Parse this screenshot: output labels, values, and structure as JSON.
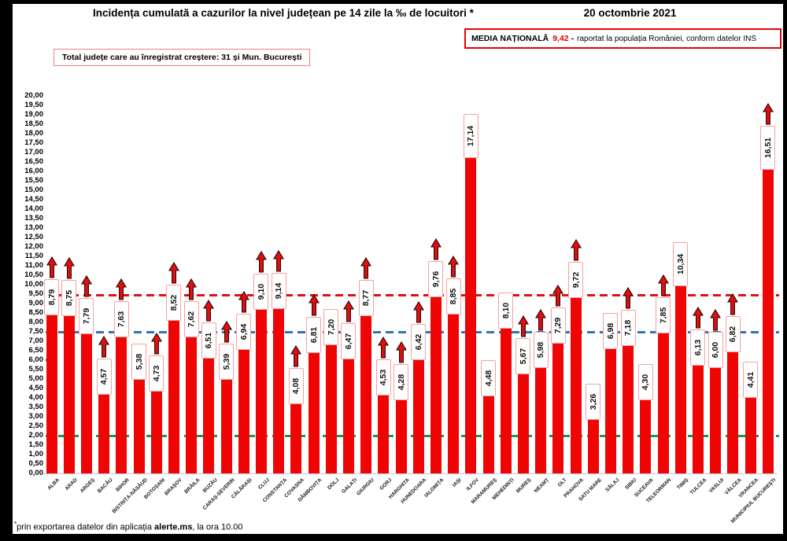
{
  "header": {
    "title": "Incidența cumulată a cazurilor la nivel județean pe 14 zile la ‰ de locuitori *",
    "date": "20 octombrie 2021",
    "national_average": {
      "label": "MEDIA NAȚIONALĂ",
      "value": "9,42",
      "separator": "-",
      "note": "raportat la populația României, conform datelor INS"
    },
    "growth_note": "Total județe care au înregistrat creștere:  31 și Mun. București"
  },
  "chart_data": {
    "type": "bar",
    "title": "Incidența cumulată a cazurilor la nivel județean pe 14 zile la ‰ de locuitori",
    "ylabel": "",
    "xlabel": "",
    "ylim": [
      0,
      20
    ],
    "ytick_step": 0.5,
    "grid": false,
    "bar_color": "#f00505",
    "value_box_border_color": "#f7a0a0",
    "arrow_color": "#e01010",
    "national_average": 9.42,
    "reference_lines": [
      {
        "value": 9.42,
        "color": "#e01010",
        "style": "dashed",
        "name": "media-nationala"
      },
      {
        "value": 7.5,
        "color": "#2e74b5",
        "style": "dashed",
        "name": "linie-albastra"
      },
      {
        "value": 2.0,
        "color": "#00a550",
        "style": "dashed",
        "name": "linie-verde"
      },
      {
        "value": 6.0,
        "color": "#2e74b5",
        "style": "segment",
        "name": "marcaj-albastru"
      }
    ],
    "entries": [
      {
        "county": "ALBA",
        "value": 8.79,
        "display": "8,79",
        "increase": true
      },
      {
        "county": "ARAD",
        "value": 8.75,
        "display": "8,75",
        "increase": true
      },
      {
        "county": "ARGEȘ",
        "value": 7.79,
        "display": "7,79",
        "increase": true
      },
      {
        "county": "BACĂU",
        "value": 4.57,
        "display": "4,57",
        "increase": true
      },
      {
        "county": "BIHOR",
        "value": 7.63,
        "display": "7,63",
        "increase": true
      },
      {
        "county": "BISTRIȚA-NĂSĂUD",
        "value": 5.38,
        "display": "5,38",
        "increase": false
      },
      {
        "county": "BOTOȘANI",
        "value": 4.73,
        "display": "4,73",
        "increase": true
      },
      {
        "county": "BRAȘOV",
        "value": 8.52,
        "display": "8,52",
        "increase": true
      },
      {
        "county": "BRĂILA",
        "value": 7.62,
        "display": "7,62",
        "increase": true
      },
      {
        "county": "BUZĂU",
        "value": 6.51,
        "display": "6,51",
        "increase": true
      },
      {
        "county": "CARAȘ-SEVERIN",
        "value": 5.39,
        "display": "5,39",
        "increase": true
      },
      {
        "county": "CĂLĂRAȘI",
        "value": 6.94,
        "display": "6,94",
        "increase": true
      },
      {
        "county": "CLUJ",
        "value": 9.1,
        "display": "9,10",
        "increase": true
      },
      {
        "county": "CONSTANȚA",
        "value": 9.14,
        "display": "9,14",
        "increase": true
      },
      {
        "county": "COVASNA",
        "value": 4.08,
        "display": "4,08",
        "increase": true
      },
      {
        "county": "DÂMBOVIȚA",
        "value": 6.81,
        "display": "6,81",
        "increase": true
      },
      {
        "county": "DOLJ",
        "value": 7.2,
        "display": "7,20",
        "increase": false
      },
      {
        "county": "GALAȚI",
        "value": 6.47,
        "display": "6,47",
        "increase": true
      },
      {
        "county": "GIURGIU",
        "value": 8.77,
        "display": "8,77",
        "increase": true
      },
      {
        "county": "GORJ",
        "value": 4.53,
        "display": "4,53",
        "increase": true
      },
      {
        "county": "HARGHITA",
        "value": 4.28,
        "display": "4,28",
        "increase": true
      },
      {
        "county": "HUNEDOARA",
        "value": 6.42,
        "display": "6,42",
        "increase": true
      },
      {
        "county": "IALOMIȚA",
        "value": 9.76,
        "display": "9,76",
        "increase": true
      },
      {
        "county": "IAȘI",
        "value": 8.85,
        "display": "8,85",
        "increase": true
      },
      {
        "county": "ILFOV",
        "value": 17.14,
        "display": "17,14",
        "increase": false
      },
      {
        "county": "MARAMUREȘ",
        "value": 4.48,
        "display": "4,48",
        "increase": false
      },
      {
        "county": "MEHEDINȚI",
        "value": 8.1,
        "display": "8,10",
        "increase": false
      },
      {
        "county": "MUREȘ",
        "value": 5.67,
        "display": "5,67",
        "increase": true
      },
      {
        "county": "NEAMȚ",
        "value": 5.98,
        "display": "5,98",
        "increase": true
      },
      {
        "county": "OLT",
        "value": 7.29,
        "display": "7,29",
        "increase": true
      },
      {
        "county": "PRAHOVA",
        "value": 9.72,
        "display": "9,72",
        "increase": true
      },
      {
        "county": "SATU MARE",
        "value": 3.26,
        "display": "3,26",
        "increase": false
      },
      {
        "county": "SĂLAJ",
        "value": 6.98,
        "display": "6,98",
        "increase": false
      },
      {
        "county": "SIBIU",
        "value": 7.18,
        "display": "7,18",
        "increase": true
      },
      {
        "county": "SUCEAVA",
        "value": 4.3,
        "display": "4,30",
        "increase": false
      },
      {
        "county": "TELEORMAN",
        "value": 7.85,
        "display": "7,85",
        "increase": true
      },
      {
        "county": "TIMIȘ",
        "value": 10.34,
        "display": "10,34",
        "increase": false
      },
      {
        "county": "TULCEA",
        "value": 6.13,
        "display": "6,13",
        "increase": true
      },
      {
        "county": "VASLUI",
        "value": 6.0,
        "display": "6,00",
        "increase": true
      },
      {
        "county": "VÂLCEA",
        "value": 6.82,
        "display": "6,82",
        "increase": true
      },
      {
        "county": "VRANCEA",
        "value": 4.41,
        "display": "4,41",
        "increase": false
      },
      {
        "county": "MUNICIPIUL BUCUREȘTI",
        "value": 16.51,
        "display": "16,51",
        "increase": true
      }
    ]
  },
  "footer": {
    "asterisk": "*",
    "text_before": "prin exportarea datelor din aplicația ",
    "app_name": "alerte.ms",
    "text_after": ", la ora 10.00"
  }
}
